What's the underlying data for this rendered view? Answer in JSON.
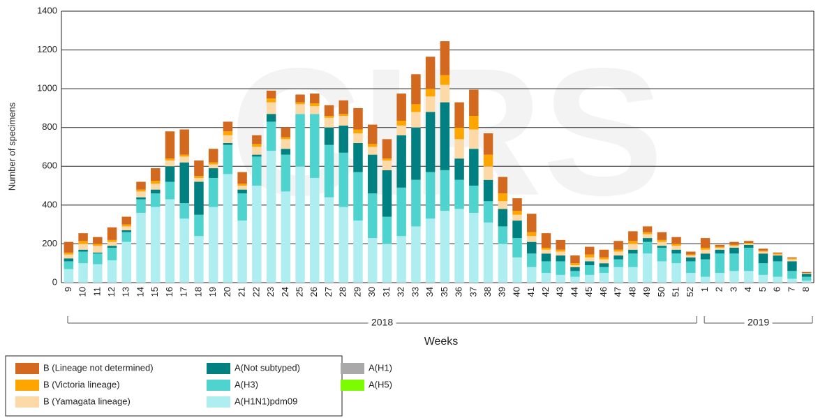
{
  "chart_data": {
    "type": "bar",
    "stacked": true,
    "watermark": "CIRS",
    "y_label": "Number of specimens",
    "x_label": "Weeks",
    "ylim": [
      0,
      1400
    ],
    "yticks": [
      0,
      200,
      400,
      600,
      800,
      1000,
      1200,
      1400
    ],
    "grid": true,
    "groups": [
      {
        "label": "2018",
        "categories": [
          "9",
          "10",
          "11",
          "12",
          "13",
          "14",
          "15",
          "16",
          "17",
          "18",
          "19",
          "20",
          "21",
          "22",
          "23",
          "24",
          "25",
          "26",
          "27",
          "28",
          "29",
          "30",
          "31",
          "32",
          "33",
          "34",
          "35",
          "36",
          "37",
          "38",
          "39",
          "40",
          "41",
          "42",
          "43",
          "44",
          "45",
          "46",
          "47",
          "48",
          "49",
          "50",
          "51",
          "52"
        ]
      },
      {
        "label": "2019",
        "categories": [
          "1",
          "2",
          "3",
          "4",
          "5",
          "6",
          "7",
          "8"
        ]
      }
    ],
    "legend": "bottom-left",
    "series": [
      {
        "name": "A(H1N1)pdm09",
        "color": "#afeef0",
        "values": [
          70,
          100,
          95,
          115,
          210,
          360,
          390,
          430,
          330,
          240,
          390,
          560,
          320,
          500,
          680,
          470,
          600,
          540,
          440,
          390,
          320,
          230,
          200,
          240,
          290,
          330,
          370,
          380,
          360,
          310,
          200,
          130,
          80,
          50,
          40,
          30,
          40,
          50,
          80,
          80,
          150,
          110,
          100,
          50,
          30,
          50,
          60,
          60,
          40,
          30,
          20,
          10
        ]
      },
      {
        "name": "A(H3)",
        "color": "#4fd3cf",
        "values": [
          40,
          60,
          55,
          65,
          50,
          70,
          70,
          90,
          80,
          110,
          150,
          150,
          140,
          150,
          150,
          190,
          270,
          330,
          270,
          280,
          250,
          230,
          140,
          250,
          240,
          240,
          210,
          150,
          140,
          110,
          90,
          100,
          70,
          60,
          70,
          30,
          50,
          30,
          40,
          70,
          60,
          70,
          50,
          60,
          90,
          100,
          90,
          120,
          60,
          80,
          40,
          20
        ]
      },
      {
        "name": "A(Not subtyped)",
        "color": "#008080",
        "values": [
          15,
          10,
          5,
          10,
          10,
          10,
          20,
          80,
          210,
          170,
          50,
          10,
          20,
          10,
          40,
          30,
          0,
          0,
          90,
          140,
          150,
          200,
          240,
          270,
          270,
          310,
          350,
          110,
          190,
          110,
          90,
          90,
          60,
          40,
          30,
          20,
          20,
          20,
          20,
          20,
          20,
          10,
          20,
          20,
          30,
          20,
          30,
          15,
          50,
          30,
          50,
          15
        ]
      },
      {
        "name": "A(H1)",
        "color": "#a9a9a9",
        "values": [
          0,
          0,
          0,
          0,
          0,
          0,
          0,
          0,
          0,
          0,
          0,
          0,
          0,
          0,
          0,
          0,
          0,
          0,
          0,
          0,
          0,
          0,
          0,
          0,
          0,
          0,
          0,
          0,
          0,
          0,
          0,
          0,
          0,
          0,
          0,
          0,
          0,
          0,
          0,
          0,
          0,
          0,
          0,
          0,
          0,
          0,
          0,
          0,
          0,
          0,
          0,
          0
        ]
      },
      {
        "name": "A(H5)",
        "color": "#7cfc00",
        "values": [
          0,
          0,
          0,
          0,
          0,
          0,
          0,
          0,
          0,
          0,
          0,
          0,
          0,
          0,
          0,
          0,
          0,
          0,
          0,
          0,
          0,
          0,
          0,
          0,
          0,
          0,
          0,
          0,
          0,
          0,
          0,
          0,
          0,
          0,
          0,
          0,
          0,
          0,
          0,
          0,
          0,
          0,
          0,
          0,
          0,
          0,
          0,
          0,
          0,
          0,
          0,
          0
        ]
      },
      {
        "name": "B (Yamagata lineage)",
        "color": "#fdd9a8",
        "values": [
          20,
          30,
          35,
          20,
          20,
          30,
          30,
          30,
          30,
          20,
          20,
          40,
          20,
          40,
          60,
          50,
          50,
          40,
          50,
          50,
          50,
          40,
          50,
          50,
          80,
          80,
          90,
          100,
          100,
          70,
          40,
          30,
          30,
          20,
          20,
          10,
          20,
          20,
          20,
          30,
          20,
          20,
          20,
          10,
          20,
          10,
          10,
          5,
          10,
          5,
          10,
          5
        ]
      },
      {
        "name": "B (Victoria lineage)",
        "color": "#ffa500",
        "values": [
          10,
          15,
          10,
          10,
          10,
          10,
          15,
          10,
          10,
          10,
          10,
          20,
          10,
          15,
          20,
          10,
          10,
          15,
          10,
          10,
          20,
          15,
          10,
          25,
          40,
          40,
          50,
          60,
          70,
          60,
          40,
          20,
          20,
          10,
          10,
          10,
          15,
          10,
          10,
          15,
          10,
          10,
          10,
          5,
          10,
          5,
          5,
          5,
          5,
          5,
          5,
          0
        ]
      },
      {
        "name": "B (Lineage not determined)",
        "color": "#d2691e",
        "values": [
          55,
          40,
          35,
          65,
          40,
          40,
          65,
          140,
          130,
          80,
          70,
          50,
          60,
          45,
          40,
          50,
          40,
          50,
          55,
          70,
          110,
          100,
          100,
          140,
          155,
          165,
          175,
          130,
          135,
          110,
          85,
          65,
          95,
          75,
          50,
          40,
          40,
          40,
          45,
          50,
          30,
          40,
          35,
          15,
          50,
          10,
          15,
          10,
          10,
          5,
          5,
          5
        ]
      }
    ]
  }
}
